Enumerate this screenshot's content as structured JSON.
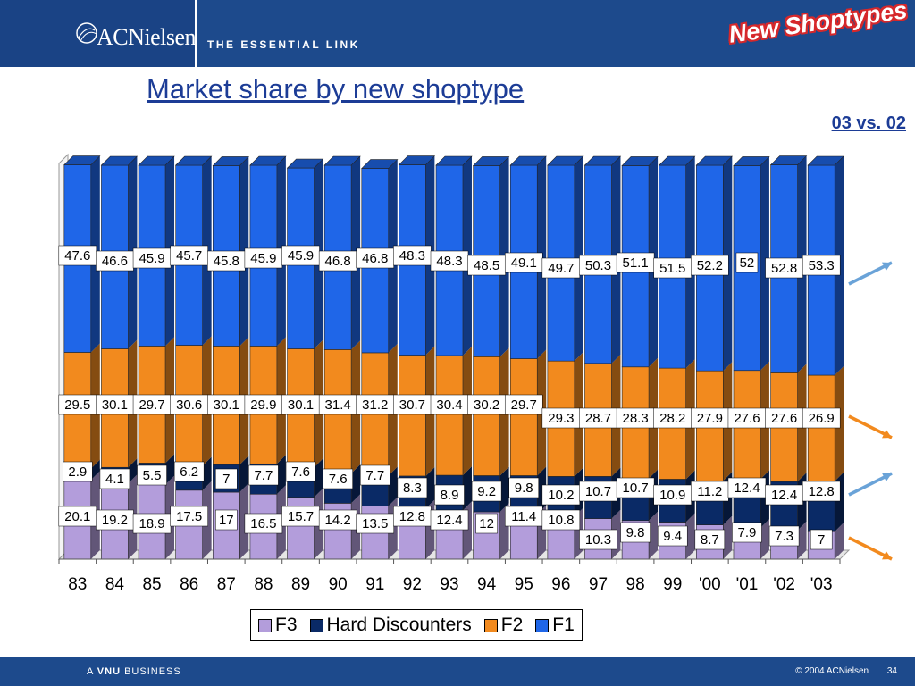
{
  "header": {
    "logo_text": "ACNielsen",
    "tagline": "THE ESSENTIAL LINK",
    "badge": "New Shoptypes"
  },
  "title": "Market share by new shoptype",
  "subtitle": "03 vs. 02",
  "footer": {
    "left_prefix": "A",
    "left_brand": "VNU",
    "left_suffix": "BUSINESS",
    "copyright": "© 2004 ACNielsen",
    "page": "34"
  },
  "colors": {
    "F3": "#b39ddb",
    "Hard Discounters": "#0a2a66",
    "F2": "#f28a1e",
    "F1": "#1f66e8",
    "arrow_up": "#6aa3d8",
    "arrow_down": "#f28a1e"
  },
  "chart_data": {
    "type": "bar",
    "stacked": true,
    "categories": [
      "83",
      "84",
      "85",
      "86",
      "87",
      "88",
      "89",
      "90",
      "91",
      "92",
      "93",
      "94",
      "95",
      "96",
      "97",
      "98",
      "99",
      "'00",
      "'01",
      "'02",
      "'03"
    ],
    "series": [
      {
        "name": "F3",
        "values": [
          20.1,
          19.2,
          18.9,
          17.5,
          17,
          16.5,
          15.7,
          14.2,
          13.5,
          12.8,
          12.4,
          12,
          11.4,
          10.8,
          10.3,
          9.8,
          9.4,
          8.7,
          7.9,
          7.3,
          7
        ]
      },
      {
        "name": "Hard Discounters",
        "values": [
          2.9,
          4.1,
          5.5,
          6.2,
          7,
          7.7,
          7.6,
          7.6,
          7.7,
          8.3,
          8.9,
          9.2,
          9.8,
          10.2,
          10.7,
          10.7,
          10.9,
          11.2,
          12.4,
          12.4,
          12.8
        ]
      },
      {
        "name": "F2",
        "values": [
          29.5,
          30.1,
          29.7,
          30.6,
          30.1,
          29.9,
          30.1,
          31.4,
          31.2,
          30.7,
          30.4,
          30.2,
          29.7,
          29.3,
          28.7,
          28.3,
          28.2,
          27.9,
          27.6,
          27.6,
          26.9
        ]
      },
      {
        "name": "F1",
        "values": [
          47.6,
          46.6,
          45.9,
          45.7,
          45.8,
          45.9,
          45.9,
          46.8,
          46.8,
          48.3,
          48.3,
          48.5,
          49.1,
          49.7,
          50.3,
          51.1,
          51.5,
          52.2,
          52,
          52.8,
          53.3
        ]
      }
    ],
    "ylim": [
      0,
      100
    ],
    "legend_position": "bottom",
    "trend_arrows": [
      "up",
      "down",
      "up",
      "down"
    ]
  }
}
